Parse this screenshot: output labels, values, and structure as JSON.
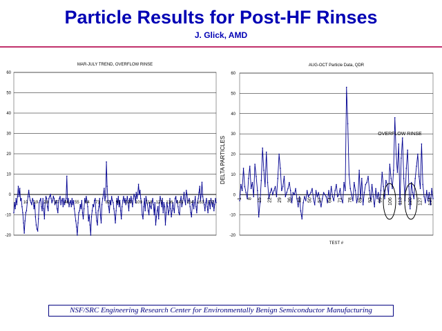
{
  "header": {
    "title": "Particle Results for Post-HF Rinses",
    "subtitle": "J. Glick, AMD"
  },
  "footer": {
    "text": "NSF/SRC Engineering Research Center for Environmentally Benign Semiconductor Manufacturing"
  },
  "colors": {
    "line": "#000090",
    "title": "#0000b4",
    "rule": "#c0306a"
  },
  "chart_data": [
    {
      "type": "line",
      "title": "MAR-JULY TREND, OVERFLOW RINSE",
      "ylim": [
        -20,
        60
      ],
      "yticks": [
        -20,
        -10,
        0,
        10,
        20,
        30,
        40,
        50,
        60
      ],
      "xtick_labels": [
        "10",
        "19",
        "28",
        "37",
        "46",
        "55",
        "64",
        "73",
        "82",
        "91",
        "100",
        "109",
        "118",
        "127",
        "136",
        "145",
        "154",
        "163",
        "172"
      ],
      "grid": true,
      "values": [
        -9,
        -4,
        -7,
        -2,
        -5,
        -1,
        4,
        -1,
        3,
        -3,
        -2,
        -6,
        -9,
        -14,
        -19,
        -13,
        -9,
        -8,
        -4,
        -1,
        2,
        -1,
        -3,
        -4,
        -5,
        -2,
        -3,
        -7,
        -4,
        -11,
        -15,
        -17,
        -18,
        -12,
        -4,
        -3,
        -2,
        -6,
        -8,
        -2,
        -7,
        -12,
        -4,
        -1,
        -2,
        -6,
        -8,
        -2,
        -1,
        0,
        -2,
        -4,
        -3,
        -1,
        -2,
        -5,
        -4,
        -3,
        -7,
        -9,
        -4,
        -2,
        -1,
        -5,
        -3,
        -2,
        -6,
        -2,
        -5,
        -3,
        -2,
        9,
        -4,
        -2,
        -6,
        -4,
        -3,
        -6,
        -2,
        -5,
        -3,
        -7,
        -10,
        -13,
        -16,
        -20,
        -14,
        -9,
        -8,
        -5,
        -7,
        -3,
        -9,
        -12,
        -7,
        -2,
        -4,
        -1,
        -3,
        -6,
        -13,
        -10,
        -15,
        -20,
        -11,
        -8,
        -5,
        -6,
        -3,
        -2,
        -9,
        -13,
        -15,
        -8,
        -6,
        -2,
        -10,
        -14,
        -5,
        -2,
        0,
        3,
        -3,
        -1,
        16,
        4,
        -3,
        -6,
        -9,
        -3,
        -5,
        -1,
        -3,
        -4,
        -7,
        -10,
        -14,
        -8,
        -2,
        -5,
        -1,
        -6,
        -3,
        -8,
        -12,
        -6,
        -3,
        -1,
        -4,
        -2,
        -5,
        -3,
        -1,
        -4,
        -8,
        -2,
        -4,
        -1,
        -3,
        -6,
        -2,
        0,
        -1,
        -4,
        1,
        -2,
        0,
        5,
        0,
        2,
        -2,
        -4,
        -10,
        -12,
        -6,
        -2,
        -8,
        -1,
        -3,
        -5,
        -8,
        -10,
        -4,
        -6,
        -7,
        -4,
        -2,
        -5,
        -10,
        -4,
        -15,
        -11,
        -8,
        -6,
        -12,
        -4,
        -1,
        -3,
        -6,
        -2,
        -9,
        -4,
        -6,
        -15,
        -9,
        -4,
        -6,
        -10,
        -8,
        -2,
        -7,
        -11,
        -8,
        -4,
        -7,
        -9,
        -2,
        -1,
        -4,
        -3,
        -6,
        -9,
        -10,
        -3,
        -1,
        -6,
        -4,
        -2,
        1,
        -3,
        -5,
        2,
        0,
        -4,
        -3,
        -2,
        -6,
        -9,
        -11,
        -5,
        -3,
        -7,
        -4,
        -1,
        -6,
        -9,
        -4,
        -2,
        1,
        4,
        -3,
        0,
        6,
        -1,
        -3,
        -5,
        -8,
        -4,
        -2,
        -6,
        -9,
        -5,
        -3,
        -7,
        -2,
        -4,
        -6,
        -3,
        -8,
        -5,
        -2,
        -4
      ]
    },
    {
      "type": "line",
      "title": "AUG-OCT Particle Data, QDR",
      "xlabel": "TEST #",
      "ylabel": "DELTA PARTICLES",
      "ylim": [
        -20,
        60
      ],
      "yticks": [
        -20,
        -10,
        0,
        10,
        20,
        30,
        40,
        50,
        60
      ],
      "xtick_labels": [
        "1",
        "8",
        "15",
        "22",
        "29",
        "36",
        "43",
        "50",
        "57",
        "64",
        "71",
        "78",
        "85",
        "92",
        "99",
        "106",
        "113",
        "120",
        "127",
        "134"
      ],
      "grid": true,
      "annotation": "OVERFLOW RINSE",
      "values": [
        -3,
        5,
        2,
        13,
        4,
        1,
        -2,
        8,
        14,
        3,
        6,
        -1,
        15,
        9,
        2,
        -11,
        -4,
        7,
        23,
        12,
        4,
        21,
        6,
        -2,
        1,
        3,
        0,
        2,
        4,
        -1,
        8,
        20,
        13,
        2,
        4,
        9,
        -1,
        1,
        3,
        6,
        2,
        -4,
        1,
        0,
        3,
        -2,
        -6,
        -1,
        -8,
        -12,
        -4,
        -1,
        -3,
        2,
        -1,
        0,
        1,
        3,
        -2,
        -5,
        2,
        -1,
        1,
        -3,
        -6,
        -2,
        1,
        0,
        -1,
        -4,
        2,
        -2,
        4,
        -1,
        -3,
        2,
        5,
        -1,
        0,
        3,
        -2,
        -4,
        6,
        2,
        53,
        35,
        10,
        3,
        0,
        -3,
        6,
        2,
        -4,
        -1,
        12,
        -2,
        8,
        -5,
        1,
        5,
        6,
        9,
        2,
        -3,
        5,
        -1,
        -6,
        3,
        -2,
        1,
        -4,
        2,
        11,
        4,
        -2,
        7,
        5,
        0,
        15,
        8,
        3,
        12,
        38,
        20,
        11,
        25,
        -5,
        18,
        28,
        8,
        -3,
        13,
        22,
        4,
        -7,
        6,
        1,
        -2,
        8,
        14,
        20,
        9,
        3,
        25,
        5,
        -1,
        -4,
        2,
        -3,
        1,
        -5,
        3,
        -2
      ]
    }
  ]
}
